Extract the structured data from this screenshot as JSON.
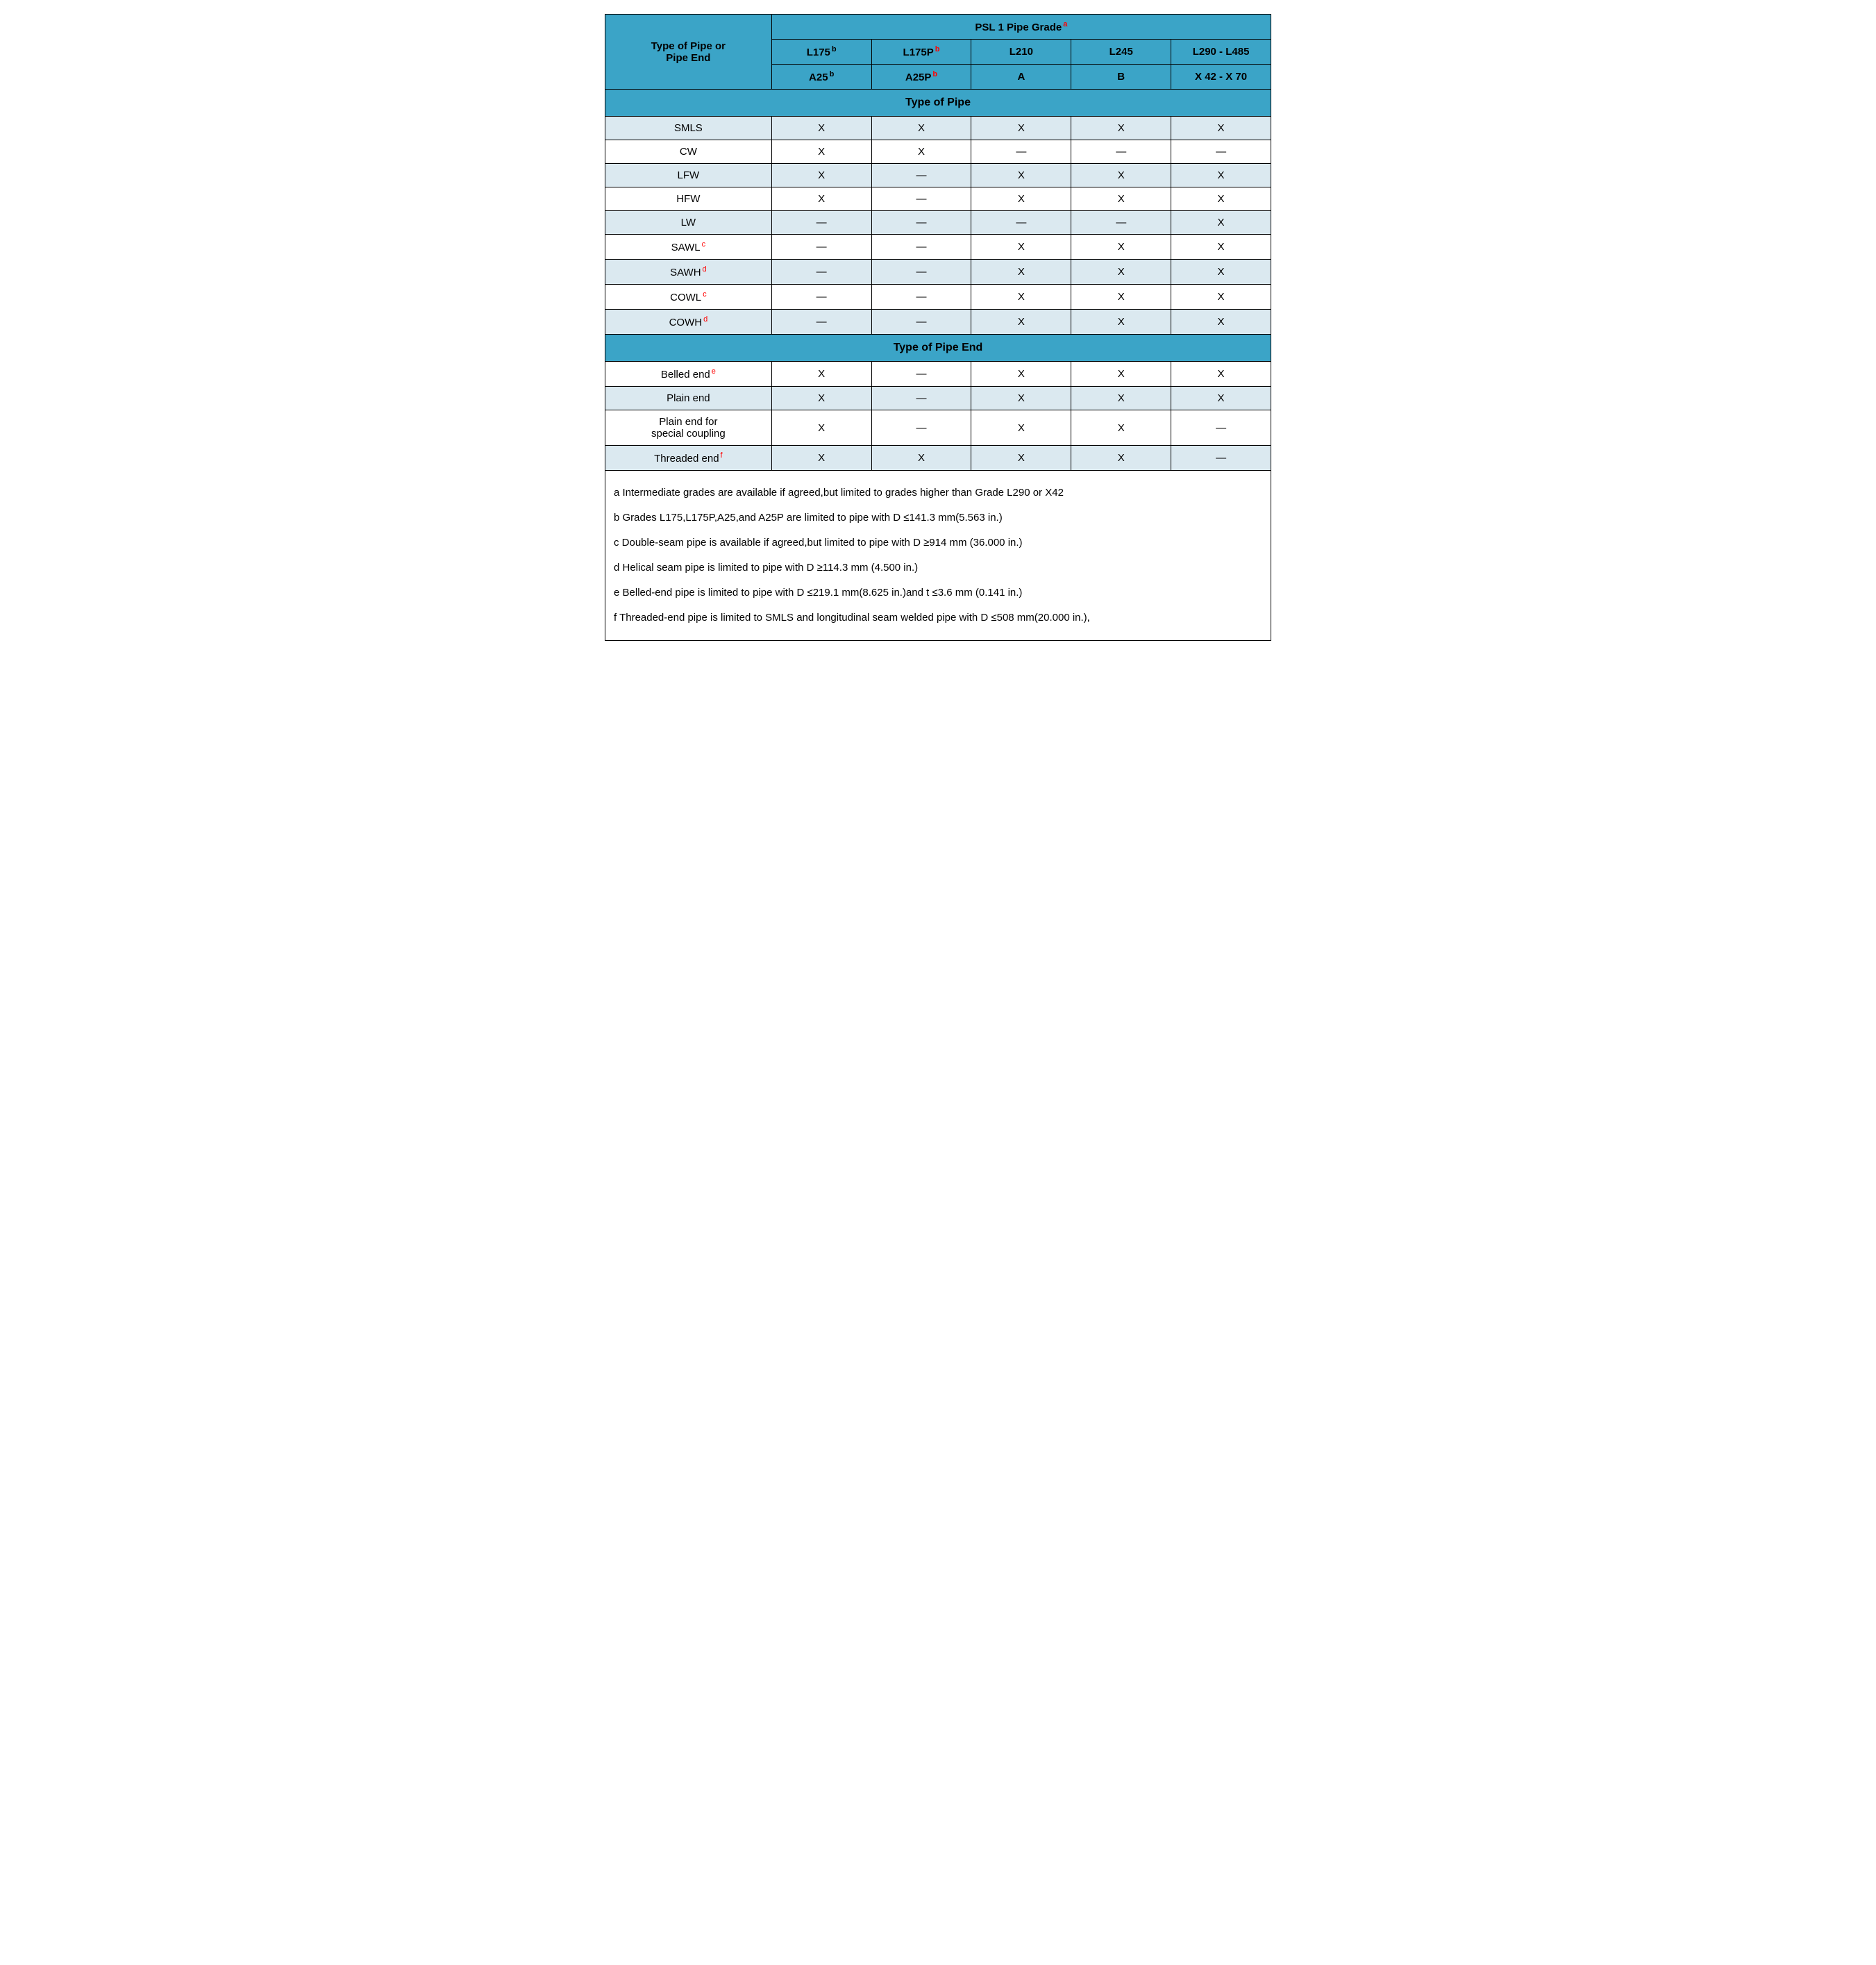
{
  "colors": {
    "header_bg": "#3ba4c7",
    "row_alt_bg": "#dbe9f0",
    "row_bg": "#ffffff",
    "border": "#000000",
    "text": "#000000",
    "super_red": "#ff0000"
  },
  "header": {
    "row_header": "Type of Pipe or\nPipe End",
    "grade_title": "PSL 1 Pipe Grade",
    "grade_title_sup": "a",
    "grades_top": [
      {
        "label": "L175",
        "sup": "b",
        "sup_red": false
      },
      {
        "label": "L175P",
        "sup": "b",
        "sup_red": true
      },
      {
        "label": "L210",
        "sup": "",
        "sup_red": false
      },
      {
        "label": "L245",
        "sup": "",
        "sup_red": false
      },
      {
        "label": "L290 - L485",
        "sup": "",
        "sup_red": false
      }
    ],
    "grades_bottom": [
      {
        "label": "A25",
        "sup": "b",
        "sup_red": false
      },
      {
        "label": "A25P",
        "sup": "b",
        "sup_red": true
      },
      {
        "label": "A",
        "sup": "",
        "sup_red": false
      },
      {
        "label": "B",
        "sup": "",
        "sup_red": false
      },
      {
        "label": "X 42 - X 70",
        "sup": "",
        "sup_red": false
      }
    ]
  },
  "sections": {
    "pipe": "Type of Pipe",
    "end": "Type of Pipe End"
  },
  "marks": {
    "x": "X",
    "dash": "—"
  },
  "pipe_rows": [
    {
      "label": "SMLS",
      "sup": "",
      "sup_red": false,
      "cells": [
        "X",
        "X",
        "X",
        "X",
        "X"
      ],
      "alt": true
    },
    {
      "label": "CW",
      "sup": "",
      "sup_red": false,
      "cells": [
        "X",
        "X",
        "—",
        "—",
        "—"
      ],
      "alt": false
    },
    {
      "label": "LFW",
      "sup": "",
      "sup_red": false,
      "cells": [
        "X",
        "—",
        "X",
        "X",
        "X"
      ],
      "alt": true
    },
    {
      "label": "HFW",
      "sup": "",
      "sup_red": false,
      "cells": [
        "X",
        "—",
        "X",
        "X",
        "X"
      ],
      "alt": false
    },
    {
      "label": "LW",
      "sup": "",
      "sup_red": false,
      "cells": [
        "—",
        "—",
        "—",
        "—",
        "X"
      ],
      "alt": true
    },
    {
      "label": "SAWL",
      "sup": "c",
      "sup_red": true,
      "cells": [
        "—",
        "—",
        "X",
        "X",
        "X"
      ],
      "alt": false
    },
    {
      "label": "SAWH",
      "sup": "d",
      "sup_red": true,
      "cells": [
        "—",
        "—",
        "X",
        "X",
        "X"
      ],
      "alt": true
    },
    {
      "label": "COWL",
      "sup": "c",
      "sup_red": true,
      "cells": [
        "—",
        "—",
        "X",
        "X",
        "X"
      ],
      "alt": false
    },
    {
      "label": "COWH",
      "sup": "d",
      "sup_red": true,
      "cells": [
        "—",
        "—",
        "X",
        "X",
        "X"
      ],
      "alt": true
    }
  ],
  "end_rows": [
    {
      "label": "Belled end",
      "sup": "e",
      "sup_red": true,
      "cells": [
        "X",
        "—",
        "X",
        "X",
        "X"
      ],
      "alt": false
    },
    {
      "label": "Plain end",
      "sup": "",
      "sup_red": false,
      "cells": [
        "X",
        "—",
        "X",
        "X",
        "X"
      ],
      "alt": true
    },
    {
      "label": "Plain end for\nspecial coupling",
      "sup": "",
      "sup_red": false,
      "cells": [
        "X",
        "—",
        "X",
        "X",
        "—"
      ],
      "alt": false
    },
    {
      "label": "Threaded end",
      "sup": "f",
      "sup_red": true,
      "cells": [
        "X",
        "X",
        "X",
        "X",
        "—"
      ],
      "alt": true
    }
  ],
  "footnotes": {
    "a": "a  Intermediate grades are available if agreed,but limited to grades higher than Grade L290 or X42",
    "b": "b  Grades L175,L175P,A25,and A25P are limited to pipe with D ≤141.3 mm(5.563 in.)",
    "c": "c  Double-seam pipe is available if agreed,but limited to pipe with D ≥914 mm (36.000 in.)",
    "d": "d  Helical seam pipe is limited to pipe with D ≥114.3 mm (4.500 in.)",
    "e": "e  Belled-end pipe is limited to pipe with D ≤219.1 mm(8.625 in.)and t ≤3.6 mm (0.141 in.)",
    "f": "f  Threaded-end pipe is limited to SMLS and longitudinal seam welded pipe with D ≤508 mm(20.000 in.),"
  }
}
